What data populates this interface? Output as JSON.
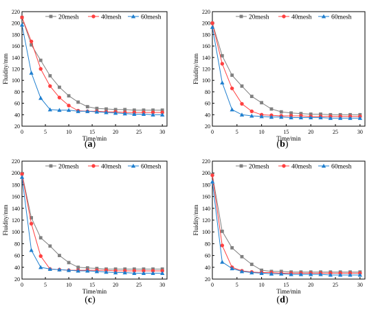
{
  "chart_data": [
    {
      "type": "line",
      "panel_label": "a",
      "xlabel": "Time/min",
      "ylabel": "Fluidity/mm",
      "xlim": [
        0,
        31
      ],
      "ylim": [
        20,
        220
      ],
      "xticks": [
        0,
        5,
        10,
        15,
        20,
        25,
        30
      ],
      "yticks": [
        20,
        40,
        60,
        80,
        100,
        120,
        140,
        160,
        180,
        200,
        220
      ],
      "x": [
        0,
        2,
        4,
        6,
        8,
        10,
        12,
        14,
        16,
        18,
        20,
        22,
        24,
        26,
        28,
        30
      ],
      "legend_position": "top",
      "series": [
        {
          "name": "20mesh",
          "color": "#808080",
          "marker": "square",
          "values": [
            210,
            162,
            135,
            108,
            88,
            73,
            62,
            54,
            51,
            50,
            49,
            49,
            48,
            48,
            48,
            48
          ]
        },
        {
          "name": "40mesh",
          "color": "#ff4040",
          "marker": "circle",
          "values": [
            210,
            168,
            120,
            90,
            70,
            56,
            47,
            46,
            46,
            45,
            45,
            44,
            44,
            44,
            44,
            44
          ]
        },
        {
          "name": "60mesh",
          "color": "#1f7fcf",
          "marker": "triangle",
          "values": [
            197,
            113,
            69,
            49,
            48,
            48,
            46,
            46,
            45,
            44,
            43,
            42,
            41,
            41,
            40,
            40
          ]
        }
      ]
    },
    {
      "type": "line",
      "panel_label": "b",
      "xlabel": "Time/min",
      "ylabel": "Fluidity/mm",
      "xlim": [
        0,
        31
      ],
      "ylim": [
        20,
        220
      ],
      "xticks": [
        0,
        5,
        10,
        15,
        20,
        25,
        30
      ],
      "yticks": [
        20,
        40,
        60,
        80,
        100,
        120,
        140,
        160,
        180,
        200,
        220
      ],
      "x": [
        0,
        2,
        4,
        6,
        8,
        10,
        12,
        14,
        16,
        18,
        20,
        22,
        24,
        26,
        28,
        30
      ],
      "legend_position": "top",
      "series": [
        {
          "name": "20mesh",
          "color": "#808080",
          "marker": "square",
          "values": [
            200,
            143,
            109,
            90,
            72,
            61,
            50,
            45,
            43,
            42,
            41,
            41,
            40,
            40,
            40,
            40
          ]
        },
        {
          "name": "40mesh",
          "color": "#ff4040",
          "marker": "circle",
          "values": [
            200,
            129,
            86,
            59,
            46,
            40,
            39,
            38,
            38,
            38,
            37,
            37,
            37,
            37,
            37,
            37
          ]
        },
        {
          "name": "60mesh",
          "color": "#1f7fcf",
          "marker": "triangle",
          "values": [
            193,
            96,
            49,
            40,
            38,
            37,
            36,
            36,
            35,
            35,
            35,
            35,
            34,
            34,
            34,
            34
          ]
        }
      ]
    },
    {
      "type": "line",
      "panel_label": "c",
      "xlabel": "Time/min",
      "ylabel": "Fluidity/mm",
      "xlim": [
        0,
        31
      ],
      "ylim": [
        20,
        220
      ],
      "xticks": [
        0,
        5,
        10,
        15,
        20,
        25,
        30
      ],
      "yticks": [
        20,
        40,
        60,
        80,
        100,
        120,
        140,
        160,
        180,
        200,
        220
      ],
      "x": [
        0,
        2,
        4,
        6,
        8,
        10,
        12,
        14,
        16,
        18,
        20,
        22,
        24,
        26,
        28,
        30
      ],
      "legend_position": "top",
      "series": [
        {
          "name": "20mesh",
          "color": "#808080",
          "marker": "square",
          "values": [
            199,
            124,
            90,
            76,
            60,
            48,
            40,
            39,
            38,
            37,
            37,
            37,
            37,
            37,
            37,
            37
          ]
        },
        {
          "name": "40mesh",
          "color": "#ff4040",
          "marker": "circle",
          "values": [
            198,
            114,
            59,
            37,
            36,
            35,
            35,
            35,
            35,
            35,
            34,
            34,
            34,
            34,
            34,
            34
          ]
        },
        {
          "name": "60mesh",
          "color": "#1f7fcf",
          "marker": "triangle",
          "values": [
            193,
            69,
            40,
            37,
            36,
            35,
            34,
            34,
            33,
            32,
            31,
            31,
            30,
            30,
            30,
            30
          ]
        }
      ]
    },
    {
      "type": "line",
      "panel_label": "d",
      "xlabel": "Time/min",
      "ylabel": "Fluidity/mm",
      "xlim": [
        0,
        31
      ],
      "ylim": [
        20,
        220
      ],
      "xticks": [
        0,
        5,
        10,
        15,
        20,
        25,
        30
      ],
      "yticks": [
        20,
        40,
        60,
        80,
        100,
        120,
        140,
        160,
        180,
        200,
        220
      ],
      "x": [
        0,
        2,
        4,
        6,
        8,
        10,
        12,
        14,
        16,
        18,
        20,
        22,
        24,
        26,
        28,
        30
      ],
      "legend_position": "top",
      "series": [
        {
          "name": "20mesh",
          "color": "#808080",
          "marker": "square",
          "values": [
            197,
            101,
            73,
            58,
            45,
            35,
            33,
            33,
            32,
            32,
            32,
            32,
            32,
            32,
            32,
            32
          ]
        },
        {
          "name": "40mesh",
          "color": "#ff4040",
          "marker": "circle",
          "values": [
            196,
            77,
            40,
            34,
            32,
            31,
            31,
            30,
            30,
            30,
            30,
            30,
            30,
            30,
            30,
            30
          ]
        },
        {
          "name": "60mesh",
          "color": "#1f7fcf",
          "marker": "triangle",
          "values": [
            185,
            49,
            38,
            33,
            31,
            30,
            29,
            29,
            28,
            28,
            28,
            28,
            27,
            27,
            27,
            27
          ]
        }
      ]
    }
  ]
}
